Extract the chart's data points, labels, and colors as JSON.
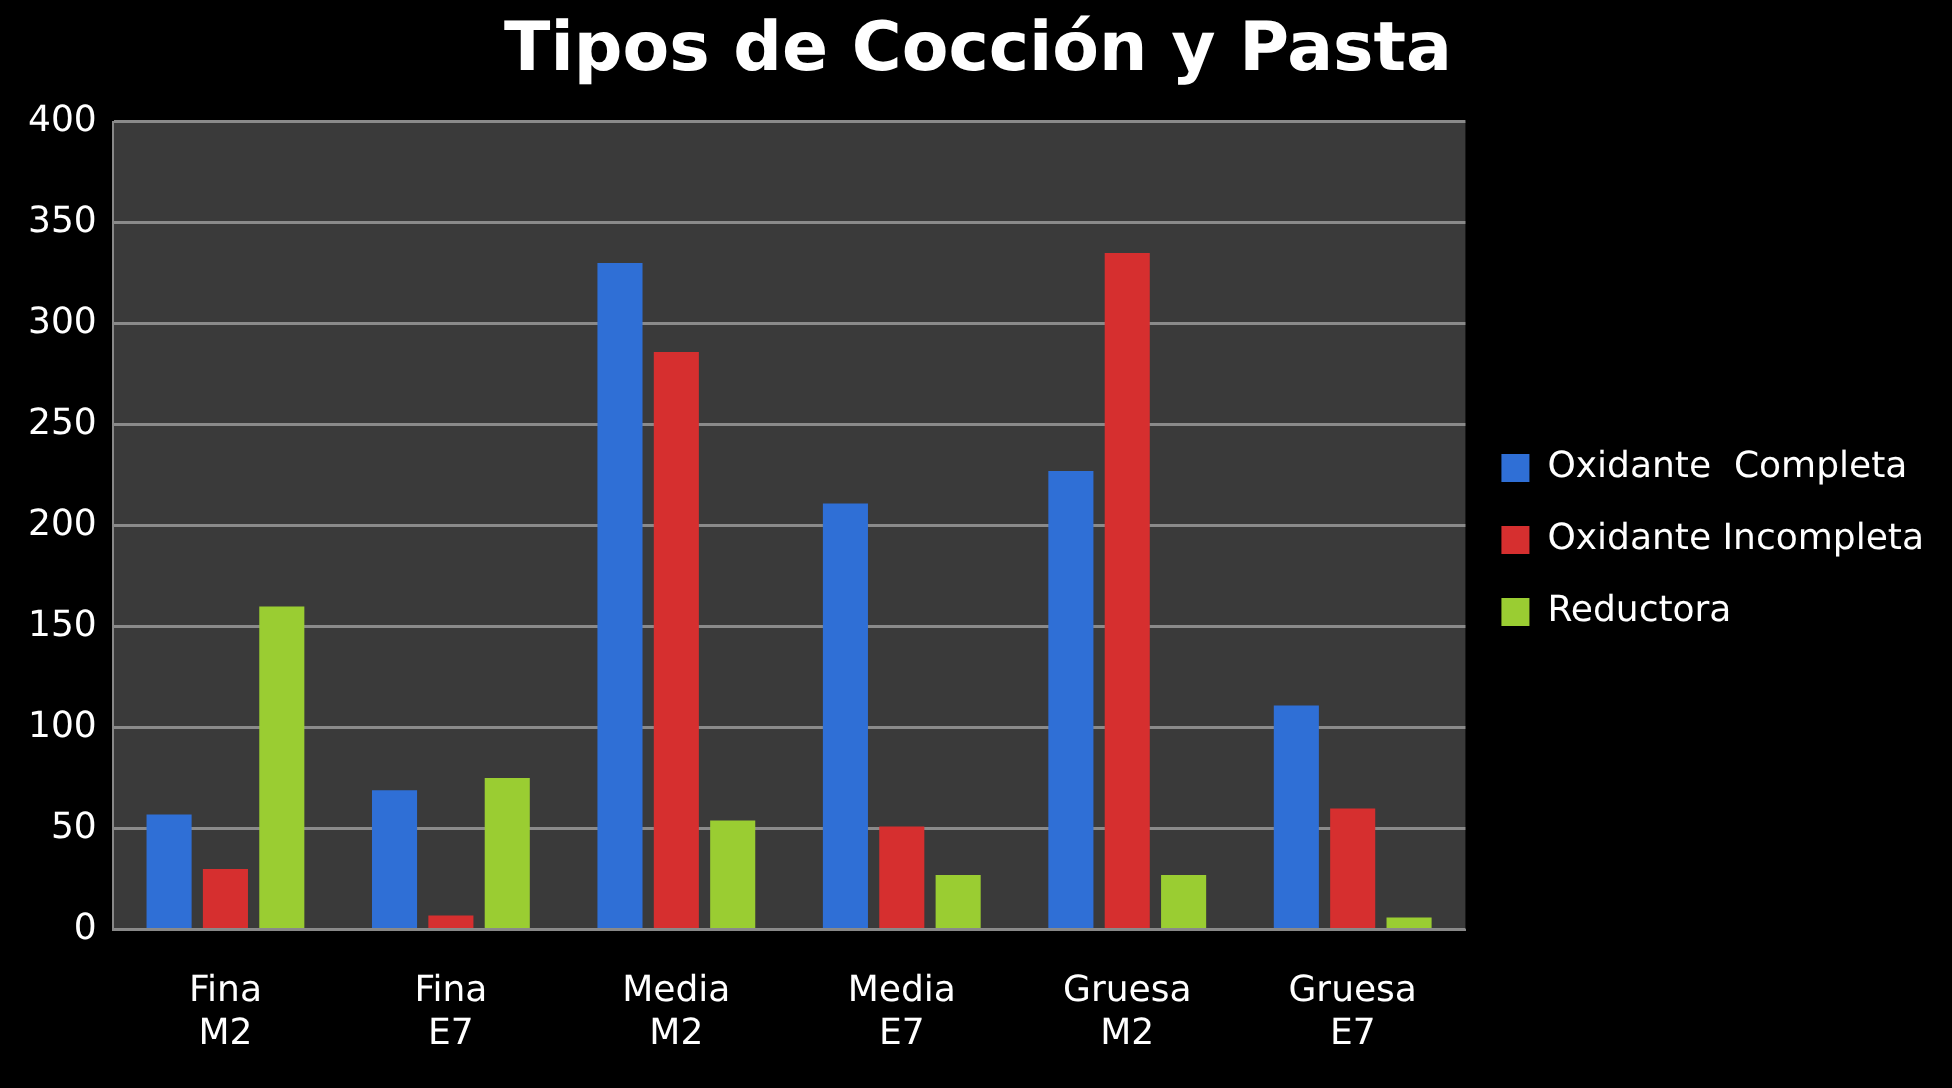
{
  "chart_data": {
    "type": "bar",
    "title": "Tipos de Cocción y Pasta",
    "categories": [
      "Fina M2",
      "Fina E7",
      "Media M2",
      "Media E7",
      "Gruesa M2",
      "Gruesa E7"
    ],
    "series": [
      {
        "name": "Oxidante  Completa",
        "color": "#2f6fd6",
        "values": [
          57,
          69,
          330,
          211,
          227,
          111
        ]
      },
      {
        "name": "Oxidante Incompleta",
        "color": "#d62f2f",
        "values": [
          30,
          7,
          286,
          51,
          335,
          60
        ]
      },
      {
        "name": "Reductora",
        "color": "#9acd32",
        "values": [
          160,
          75,
          54,
          27,
          27,
          6
        ]
      }
    ],
    "ylim": [
      0,
      400
    ],
    "yticks": [
      0,
      50,
      100,
      150,
      200,
      250,
      300,
      350,
      400
    ],
    "grid": "y",
    "legend": "right"
  }
}
